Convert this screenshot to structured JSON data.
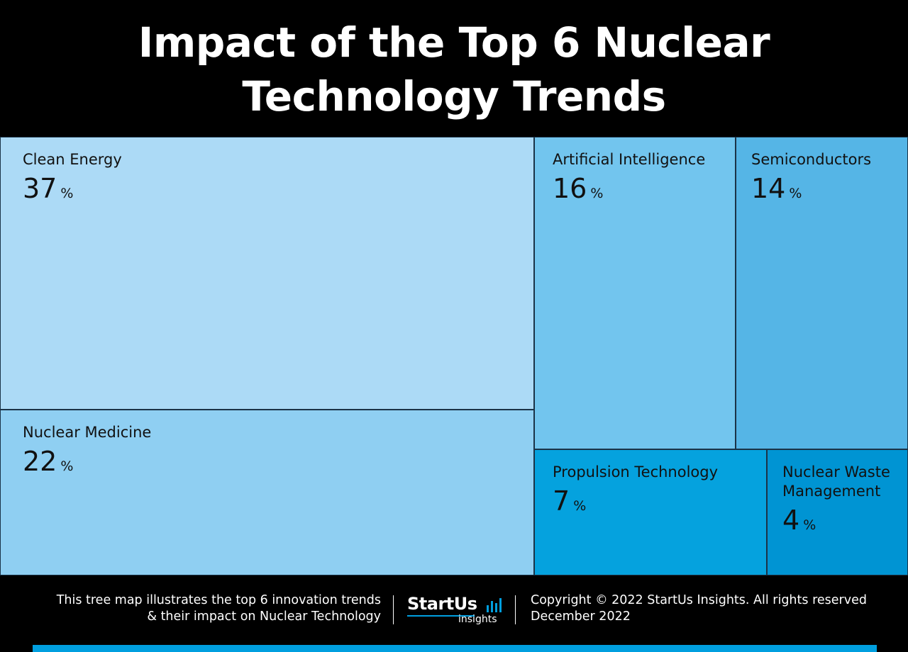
{
  "header": {
    "title_line1": "Impact of the Top 6 Nuclear",
    "title_line2": "Technology Trends"
  },
  "chart_data": {
    "type": "treemap",
    "title": "Impact of the Top 6 Nuclear Technology Trends",
    "unit": "%",
    "items": [
      {
        "label": "Clean Energy",
        "value": 37,
        "color": "#acdaf6"
      },
      {
        "label": "Nuclear Medicine",
        "value": 22,
        "color": "#8fcff2"
      },
      {
        "label": "Artificial Intelligence",
        "value": 16,
        "color": "#72c5ee"
      },
      {
        "label": "Semiconductors",
        "value": 14,
        "color": "#55b5e6"
      },
      {
        "label": "Propulsion Technology",
        "value": 7,
        "color": "#05a2de"
      },
      {
        "label": "Nuclear Waste Management",
        "value": 4,
        "color": "#0094d3"
      }
    ]
  },
  "footer": {
    "description_line1": "This tree map illustrates the top 6 innovation trends",
    "description_line2": "& their impact on Nuclear Technology",
    "logo_word": "StartUs",
    "logo_sub": "insights",
    "copyright_line1": "Copyright © 2022 StartUs Insights. All rights reserved",
    "copyright_line2": "December 2022",
    "accent_color": "#009fdf"
  }
}
